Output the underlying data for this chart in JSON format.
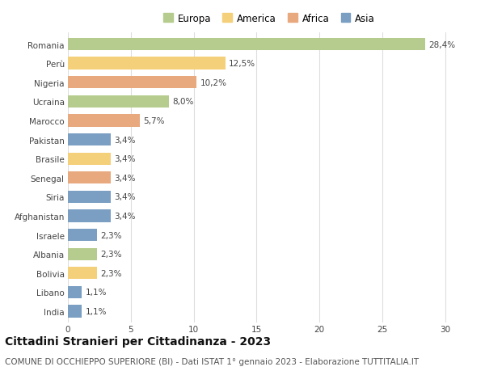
{
  "countries": [
    "Romania",
    "Perù",
    "Nigeria",
    "Ucraina",
    "Marocco",
    "Pakistan",
    "Brasile",
    "Senegal",
    "Siria",
    "Afghanistan",
    "Israele",
    "Albania",
    "Bolivia",
    "Libano",
    "India"
  ],
  "values": [
    28.4,
    12.5,
    10.2,
    8.0,
    5.7,
    3.4,
    3.4,
    3.4,
    3.4,
    3.4,
    2.3,
    2.3,
    2.3,
    1.1,
    1.1
  ],
  "labels": [
    "28,4%",
    "12,5%",
    "10,2%",
    "8,0%",
    "5,7%",
    "3,4%",
    "3,4%",
    "3,4%",
    "3,4%",
    "3,4%",
    "2,3%",
    "2,3%",
    "2,3%",
    "1,1%",
    "1,1%"
  ],
  "continents": [
    "Europa",
    "America",
    "Africa",
    "Europa",
    "Africa",
    "Asia",
    "America",
    "Africa",
    "Asia",
    "Asia",
    "Asia",
    "Europa",
    "America",
    "Asia",
    "Asia"
  ],
  "colors": {
    "Europa": "#b5cc8e",
    "America": "#f5d07a",
    "Africa": "#e8a97e",
    "Asia": "#7a9fc2"
  },
  "legend_order": [
    "Europa",
    "America",
    "Africa",
    "Asia"
  ],
  "xlim": [
    0,
    32
  ],
  "xticks": [
    0,
    5,
    10,
    15,
    20,
    25,
    30
  ],
  "title": "Cittadini Stranieri per Cittadinanza - 2023",
  "subtitle": "COMUNE DI OCCHIEPPO SUPERIORE (BI) - Dati ISTAT 1° gennaio 2023 - Elaborazione TUTTITALIA.IT",
  "background_color": "#ffffff",
  "bar_height": 0.65,
  "title_fontsize": 10,
  "subtitle_fontsize": 7.5,
  "label_fontsize": 7.5,
  "tick_fontsize": 7.5,
  "legend_fontsize": 8.5
}
